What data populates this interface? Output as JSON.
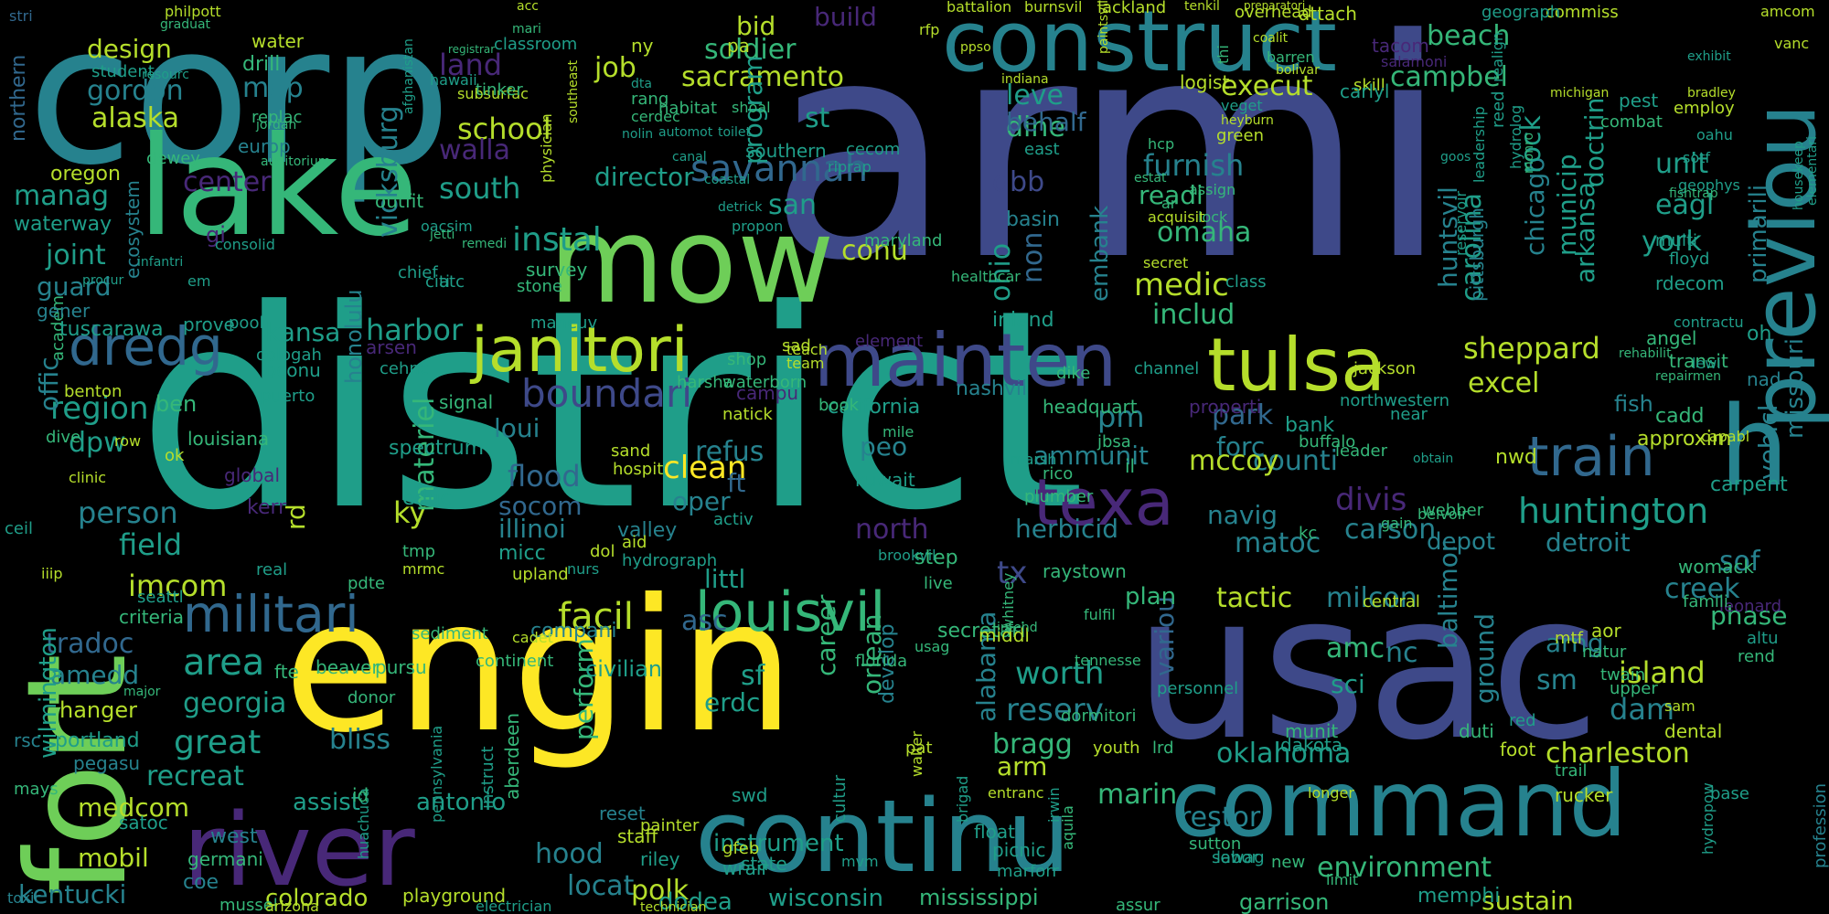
{
  "palette": {
    "background": "#000000",
    "purple": "#482878",
    "indigo": "#3e4989",
    "blue": "#31688e",
    "teal": "#26828e",
    "green_teal": "#1f9e89",
    "green": "#35b779",
    "light_green": "#6ece58",
    "lime": "#b5de2b",
    "yellow": "#fde725"
  },
  "words": {
    "armi": "armi",
    "district": "district",
    "corp": "corp",
    "usac": "usac",
    "engin": "engin",
    "lake": "lake",
    "fort": "fort",
    "construct": "construct",
    "mow": "mow",
    "mainten": "mainten",
    "river": "river",
    "continu": "continu",
    "command": "command",
    "previou": "previou",
    "tulsa": "tulsa",
    "janitori": "janitori",
    "louisvil": "louisvil",
    "dredg": "dredg",
    "militari": "militari",
    "texa": "texa",
    "train": "train",
    "huntington": "huntington",
    "boundari": "boundari",
    "facil": "facil",
    "instal": "instal",
    "savannah": "savannah",
    "sacramento": "sacramento",
    "soldier": "soldier",
    "school": "school",
    "campbel": "campbel",
    "sheppard": "sheppard",
    "omaha": "omaha",
    "medic": "medic",
    "includ": "includ",
    "region": "region",
    "harbor": "harbor",
    "kansa": "kansa",
    "south": "south",
    "joint": "joint",
    "field": "field",
    "imcom": "imcom",
    "person": "person",
    "area": "area",
    "great": "great",
    "recreat": "recreat",
    "medcom": "medcom",
    "assist": "assist",
    "antonio": "antonio",
    "oklahoma": "oklahoma",
    "charleston": "charleston",
    "environment": "environment",
    "kentucki": "kentucki",
    "colorado": "colorado",
    "mobil": "mobil",
    "hood": "hood",
    "locat": "locat",
    "polk": "polk",
    "bliss": "bliss",
    "reserv": "reserv",
    "worth": "worth",
    "bragg": "bragg",
    "island": "island",
    "dam": "dam",
    "sof": "sof",
    "creek": "creek",
    "phase": "phase",
    "detroit": "detroit",
    "carson": "carson",
    "navig": "navig",
    "counti": "counti",
    "herbicid": "herbicid",
    "ammunit": "ammunit",
    "mccoy": "mccoy",
    "refus": "refus",
    "clean": "clean",
    "oper": "oper",
    "flood": "flood",
    "socom": "socom",
    "illinoi": "illinoi",
    "loui": "loui",
    "park": "park",
    "forc": "forc",
    "excel": "excel",
    "chicago": "chicago",
    "rock": "rock",
    "municip": "municip",
    "arkansa": "arkansa",
    "carolina": "carolina",
    "huntsvil": "huntsvil",
    "pittsburgh": "pittsburgh",
    "doctrin": "doctrin",
    "unit": "unit",
    "eagl": "eagl",
    "york": "york",
    "design": "design",
    "alaska": "alaska",
    "gordon": "gordon",
    "map": "map",
    "land": "land",
    "job": "job",
    "bid": "bid",
    "build": "build",
    "beach": "beach",
    "st": "st",
    "program": "program",
    "director": "director",
    "san": "san",
    "conu": "conu",
    "dine": "dine",
    "leve": "leve",
    "behalf": "behalf",
    "execut": "execut",
    "furnish": "furnish",
    "readi": "readi",
    "manag": "manag",
    "center": "center",
    "guard": "guard",
    "walla": "walla",
    "vicksburg": "vicksburg",
    "honolulu": "honolulu",
    "dpw": "dpw",
    "offic": "offic",
    "ky": "ky",
    "materiel": "materiel",
    "rd": "rd",
    "tradoc": "tradoc",
    "georgia": "georgia",
    "amedd": "amedd",
    "hanger": "hanger",
    "wilmington": "wilmington",
    "tx": "tx",
    "pm": "pm",
    "peo": "peo",
    "north": "north",
    "dbb": "dbb",
    "ohio": "ohio",
    "non": "non",
    "embank": "embank",
    "divis": "divis",
    "matoc": "matoc",
    "tactic": "tactic",
    "milcon": "milcon",
    "amc": "amc",
    "nc": "nc",
    "baltimor": "baltimor",
    "ground": "ground",
    "arng": "arng",
    "sm": "sm",
    "depot": "depot",
    "sf": "sf",
    "erdc": "erdc",
    "career": "career",
    "orlean": "orlean",
    "perform": "perform",
    "alabama": "alabama",
    "instrument": "instrument",
    "arm": "arm",
    "restor": "restor",
    "marin": "marin",
    "vehicl": "vehicl",
    "missouri": "missouri",
    "primarili": "primarili",
    "abal": "a",
    "h": "h",
    "littl": "littl",
    "asc": "asc",
    "ft": "ft",
    "sci": "sci",
    "variou": "variou",
    "plan": "plan",
    "nashvil": "nashvil",
    "california": "california",
    "mcl": "ft",
    "soldier2": "drill",
    "water": "water",
    "ny": "ny",
    "pa": "pa",
    "southern": "southern",
    "basin": "basin",
    "ecosystem": "ecosystem",
    "waterway": "waterway",
    "oregon": "oregon",
    "dewey": "dewey",
    "northern": "northern",
    "gi": "gi",
    "ben": "ben",
    "louisiana": "louisiana",
    "harsha": "harsha",
    "campu": "campu",
    "shop": "shop",
    "book": "book",
    "bank": "bank",
    "fish": "fish",
    "cadd": "cadd",
    "approxim": "approxim",
    "carpent": "carpent",
    "nwd": "nwd",
    "womack": "womack",
    "west": "west",
    "germani": "germani",
    "coe": "coe",
    "satoc": "satoc",
    "rsc": "rsc",
    "portland": "portland",
    "pegasu": "pegasu",
    "kerr": "kerr",
    "global": "global",
    "spectrum": "spectrum",
    "educ": "educ",
    "micc": "micc",
    "upland": "upland",
    "compani": "compani",
    "civilian": "civilian",
    "valley": "valley",
    "hydrograph": "hydrograph",
    "activ": "activ",
    "step": "step",
    "raystown": "raystown",
    "kuwait": "kuwait",
    "flood_": "wrair",
    "state": "state",
    "dodea": "dodea",
    "wisconsin": "wisconsin",
    "mississippi": "mississippi",
    "garrison": "garrison",
    "sustain": "sustain",
    "memphi": "memphi",
    "picnic": "picnic",
    "float": "float",
    "reset": "reset",
    "staff": "staff",
    "playground": "playground",
    "electrician": "electrician",
    "technician": "technician",
    "duti": "duti",
    "foot": "foot",
    "dental": "dental",
    "rucker": "rucker",
    "trail": "trail",
    "base": "base",
    "labor": "labor",
    "aor": "aor",
    "central": "central",
    "sutton": "sutton",
    "munit": "munit",
    "dakota": "dakota",
    "lrd": "lrd",
    "personnel": "personnel",
    "secretari": "secretari",
    "develop": "develop",
    "pat": "pat",
    "florida": "florida",
    "cultur": "cultur",
    "instal2": "install",
    "middl": "middl",
    "inland": "inland",
    "healthcar": "healthcar",
    "maryland": "maryland",
    "element": "element",
    "transit": "transit",
    "angel": "angel",
    "properti": "properti",
    "headquart": "headquart",
    "nurs": "nurs",
    "survey": "survey",
    "stone": "stone",
    "citi": "citi",
    "atc": "atc",
    "pool": "pool",
    "prove": "prove",
    "maneuv": "maneuv",
    "ecosys": "oconu",
    "oologah": "oologah",
    "puerto": "puerto",
    "benton": "benton",
    "academ": "academ",
    "dive": "dive",
    "clinic": "clinic",
    "ok": "ok",
    "row": "row",
    "sediment": "sediment",
    "continent": "continent",
    "donor": "donor",
    "pursu": "pursu",
    "beaver": "beaver",
    "fte": "fte",
    "major": "major",
    "criteria": "criteria",
    "seattl": "seattl",
    "iiip": "iiip",
    "tmp": "tmp",
    "pdte": "pdte",
    "signal": "signal",
    "arsen": "arsen",
    "cehnc": "cehnc",
    "outfit": "outfit",
    "replac": "replac",
    "europ": "europ",
    "drill_": "drill",
    "classroom": "classroom",
    "student": "student",
    "graduat": "graduat",
    "philpott": "philpott",
    "stri": "stri",
    "tacom": "tacom",
    "salamoni": "salamoni",
    "skill": "skill",
    "carlyl": "carlyl",
    "logist": "logist",
    "attach": "attach",
    "overhead": "overhead",
    "commiss": "commiss",
    "geograph": "geograph",
    "employ": "employ",
    "pest": "pest",
    "rdecom": "rdecom",
    "floyd": "floyd",
    "multi": "multi",
    "green": "green",
    "east": "east",
    "hcp": "hcp",
    "ar": "ar",
    "assign": "assign",
    "lock": "lock",
    "acquisit": "acquisit",
    "estat": "estat",
    "secret": "secret",
    "class": "class",
    "channel": "channel",
    "dike": "dike",
    "near": "near",
    "jackson": "jackson",
    "northwestern": "northwestern",
    "leader": "leader",
    "webber": "webber",
    "belvoir": "belvoir",
    "kc": "kc",
    "mtf": "mtf",
    "natur": "natur",
    "twain": "twain",
    "upper": "upper",
    "sam": "sam",
    "red": "red",
    "rend": "rend",
    "altu": "altu",
    "leonard": "leonard",
    "famili": "famili",
    "fulfil": "fulfil",
    "intend": "intend",
    "usag": "usag",
    "entranc": "entranc",
    "youth": "youth",
    "dormitori": "dormitori",
    "tennesse": "tennesse",
    "live": "live",
    "brookvil": "brookvil",
    "mile": "mile",
    "mccoy2": "prepar",
    "sewag": "sewag",
    "new": "new",
    "limit": "limit",
    "longer": "longer",
    "assur": "assur",
    "marforr": "marforr",
    "irwin": "irwin",
    "aquila": "aquila",
    "huachuca": "huachuca",
    "mussel": "mussel",
    "arizona": "arizona",
    "texic": "toxic",
    "mays": "mays",
    "ceil": "ceil",
    "gener": "gener",
    "tuscarawa": "tuscarawa",
    "abal2": "id",
    "dol": "dol",
    "aid": "aid",
    "sand": "sand",
    "hospit": "hospit",
    "natick": "natick",
    "waterborn": "waterborn",
    "teach": "teach",
    "team": "team",
    "sad": "sad",
    "mrmc": "mrmc",
    "real": "real",
    "riley": "riley",
    "wrair": "wrair",
    "hudson": "gfeb",
    "mvm": "mvm",
    "walter": "walter",
    "swd": "swd",
    "painter": "painter",
    "cadet": "cadet",
    "instruct": "instruct",
    "aberdeen": "aberdeen",
    "pennsylvania": "pennsylvania",
    "brigad": "brigad",
    "whitney": "whitney",
    "marsh": "marsh",
    "rico": "rico",
    "il": "il",
    "plumber": "plumber",
    "jbsa": "jbsa",
    "buffalo": "buffalo",
    "gain": "gain",
    "obtain": "obtain",
    "repairmen": "repairmen",
    "combat": "combat",
    "hydropow": "hydropow",
    "profession": "profession",
    "contractu": "contractu",
    "rehabilit": "rehabilit",
    "capabl": "capabl",
    "lewi": "lewi",
    "nad": "nad",
    "oh": "oh",
    "sotf": "sotf",
    "geophys": "geophys",
    "oahu": "oahu",
    "fishtrap": "fishtrap",
    "bradley": "bradley",
    "amcom": "amcom",
    "vanc": "vanc",
    "exhibit": "exhibit",
    "michigan": "michigan",
    "housekeep": "housekeep",
    "elementari": "elementari",
    "leadership": "leadership",
    "realign": "realign",
    "thi": "thi",
    "reed": "reed",
    "hydrolog": "hydrolog",
    "monro": "monro",
    "reservoir": "reservoir",
    "goos": "goos",
    "tenkil": "tenkil",
    "paintsvil": "paintsvil",
    "lackland": "lackland",
    "burnsvil": "burnsvil",
    "battalion": "battalion",
    "rfp": "rfp",
    "ppso": "ppso",
    "indiana": "indiana",
    "heyburn": "heyburn",
    "veget": "veget",
    "barren": "barren",
    "bolivar": "bolivar",
    "coalit": "coalit",
    "preparatori": "preparatori",
    "cecom": "cecom",
    "riprap": "riprap",
    "propon": "propon",
    "detrick": "detrick",
    "coastal": "coastal",
    "physician": "physician",
    "southeast": "southeast",
    "acc": "acc",
    "mari": "mari",
    "automot": "automot",
    "toilet": "toilet",
    "habitat": "habitat",
    "shoal": "shoal",
    "rang": "rang",
    "dta": "dta",
    "cerdec": "cerdec",
    "nolin": "nolin",
    "canal": "canal",
    "jordan": "jordan",
    "auditorium": "auditorium",
    "subsurfac": "subsurfac",
    "hawaii": "hawaii",
    "tinker": "tinker",
    "afghanistan": "afghanistan",
    "registrar": "registrar",
    "resourc": "resourc",
    "oacsim": "oacsim",
    "jetti": "jetti",
    "remedi": "remedi",
    "consolid": "consolid",
    "infantri": "infantri",
    "chief": "chief",
    "procur": "procur",
    "em": "em"
  }
}
